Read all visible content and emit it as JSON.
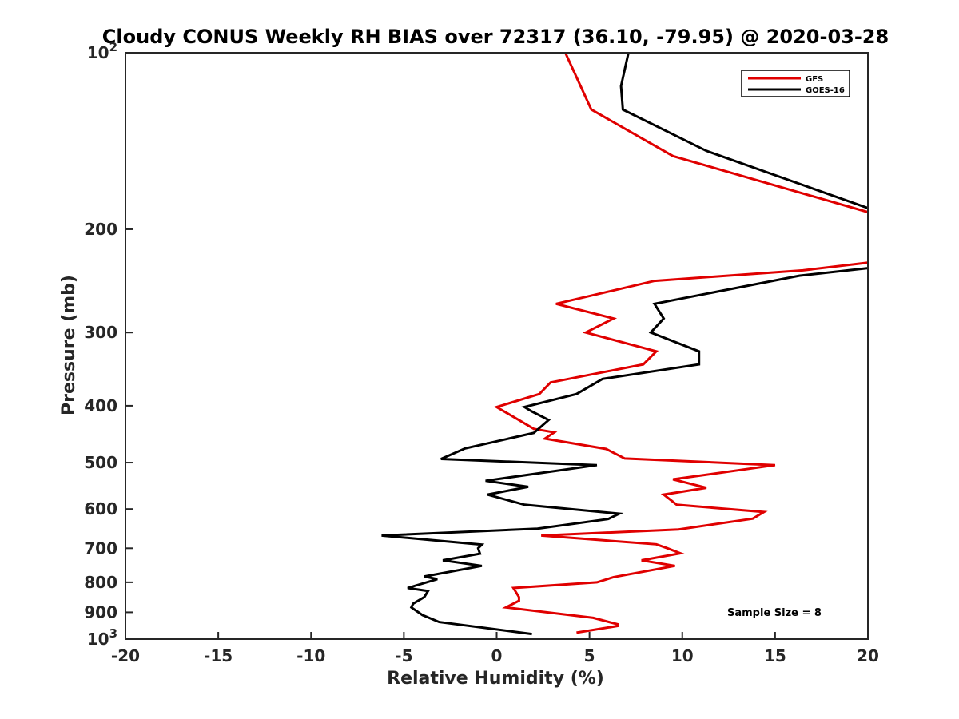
{
  "chart_data": {
    "type": "line",
    "title": "Cloudy CONUS Weekly RH BIAS over 72317 (36.10, -79.95) @ 2020-03-28",
    "xlabel": "Relative Humidity (%)",
    "ylabel": "Pressure (mb)",
    "xlim": [
      -20,
      20
    ],
    "ylim": [
      100,
      1000
    ],
    "y_scale": "log",
    "y_reversed": true,
    "grid": false,
    "legend_position": "top-right",
    "x_ticks": [
      "-20",
      "-15",
      "-10",
      "-5",
      "0",
      "5",
      "10",
      "15",
      "20"
    ],
    "y_ticks": [
      {
        "value": 100,
        "label": "10",
        "sup": "2"
      },
      {
        "value": 200,
        "label": "200"
      },
      {
        "value": 300,
        "label": "300"
      },
      {
        "value": 400,
        "label": "400"
      },
      {
        "value": 500,
        "label": "500"
      },
      {
        "value": 600,
        "label": "600"
      },
      {
        "value": 700,
        "label": "700"
      },
      {
        "value": 800,
        "label": "800"
      },
      {
        "value": 900,
        "label": "900"
      },
      {
        "value": 1000,
        "label": "10",
        "sup": "3"
      }
    ],
    "annotation": "Sample Size = 8",
    "series": [
      {
        "name": "GFS",
        "color": "#e00000",
        "segments": [
          [
            [
              3.7,
              100
            ],
            [
              5.1,
              125
            ],
            [
              9.5,
              150
            ],
            [
              20,
              187
            ]
          ],
          [
            [
              20,
              228
            ],
            [
              16.5,
              235
            ],
            [
              8.5,
              245
            ],
            [
              3.2,
              268
            ],
            [
              6.3,
              284
            ],
            [
              4.8,
              300
            ],
            [
              8.6,
              323
            ],
            [
              7.9,
              340
            ],
            [
              2.9,
              365
            ],
            [
              2.3,
              382
            ],
            [
              0.0,
              402
            ],
            [
              2.0,
              438
            ],
            [
              3.1,
              444
            ],
            [
              2.6,
              455
            ],
            [
              5.9,
              474
            ],
            [
              6.9,
              492
            ],
            [
              15.0,
              505
            ],
            [
              9.5,
              534
            ],
            [
              11.3,
              552
            ],
            [
              9.0,
              567
            ],
            [
              9.7,
              590
            ],
            [
              14.4,
              607
            ],
            [
              13.8,
              623
            ],
            [
              9.8,
              650
            ],
            [
              2.4,
              666
            ],
            [
              8.6,
              689
            ],
            [
              9.2,
              700
            ],
            [
              9.9,
              714
            ],
            [
              7.8,
              734
            ],
            [
              9.6,
              750
            ],
            [
              6.3,
              784
            ],
            [
              5.4,
              800
            ],
            [
              0.9,
              818
            ],
            [
              1.2,
              848
            ],
            [
              1.2,
              860
            ],
            [
              0.5,
              883
            ],
            [
              5.2,
              920
            ],
            [
              6.5,
              943
            ],
            [
              6.5,
              950
            ],
            [
              4.3,
              975
            ]
          ]
        ]
      },
      {
        "name": "GOES-16",
        "color": "#000000",
        "segments": [
          [
            [
              7.1,
              100
            ],
            [
              6.7,
              114
            ],
            [
              6.8,
              125
            ],
            [
              11.3,
              147
            ],
            [
              20,
              184
            ]
          ],
          [
            [
              20,
              233
            ],
            [
              16.3,
              240
            ],
            [
              8.5,
              268
            ],
            [
              9.0,
              284
            ],
            [
              8.3,
              300
            ],
            [
              10.9,
              323
            ],
            [
              10.9,
              340
            ],
            [
              5.7,
              360
            ],
            [
              4.3,
              382
            ],
            [
              1.5,
              402
            ],
            [
              1.9,
              409
            ],
            [
              2.8,
              423
            ],
            [
              2.0,
              445
            ],
            [
              -1.7,
              473
            ],
            [
              -3.0,
              493
            ],
            [
              5.4,
              505
            ],
            [
              -0.6,
              537
            ],
            [
              1.7,
              550
            ],
            [
              -0.5,
              567
            ],
            [
              1.5,
              590
            ],
            [
              6.6,
              611
            ],
            [
              6.0,
              624
            ],
            [
              2.2,
              648
            ],
            [
              -6.2,
              666
            ],
            [
              -0.8,
              690
            ],
            [
              -1.0,
              700
            ],
            [
              -0.9,
              715
            ],
            [
              -2.9,
              734
            ],
            [
              -0.8,
              750
            ],
            [
              -3.9,
              782
            ],
            [
              -3.2,
              790
            ],
            [
              -4.8,
              818
            ],
            [
              -3.7,
              828
            ],
            [
              -3.9,
              848
            ],
            [
              -4.5,
              870
            ],
            [
              -4.6,
              883
            ],
            [
              -4.0,
              910
            ],
            [
              -3.1,
              935
            ],
            [
              1.9,
              980
            ]
          ]
        ]
      }
    ]
  }
}
